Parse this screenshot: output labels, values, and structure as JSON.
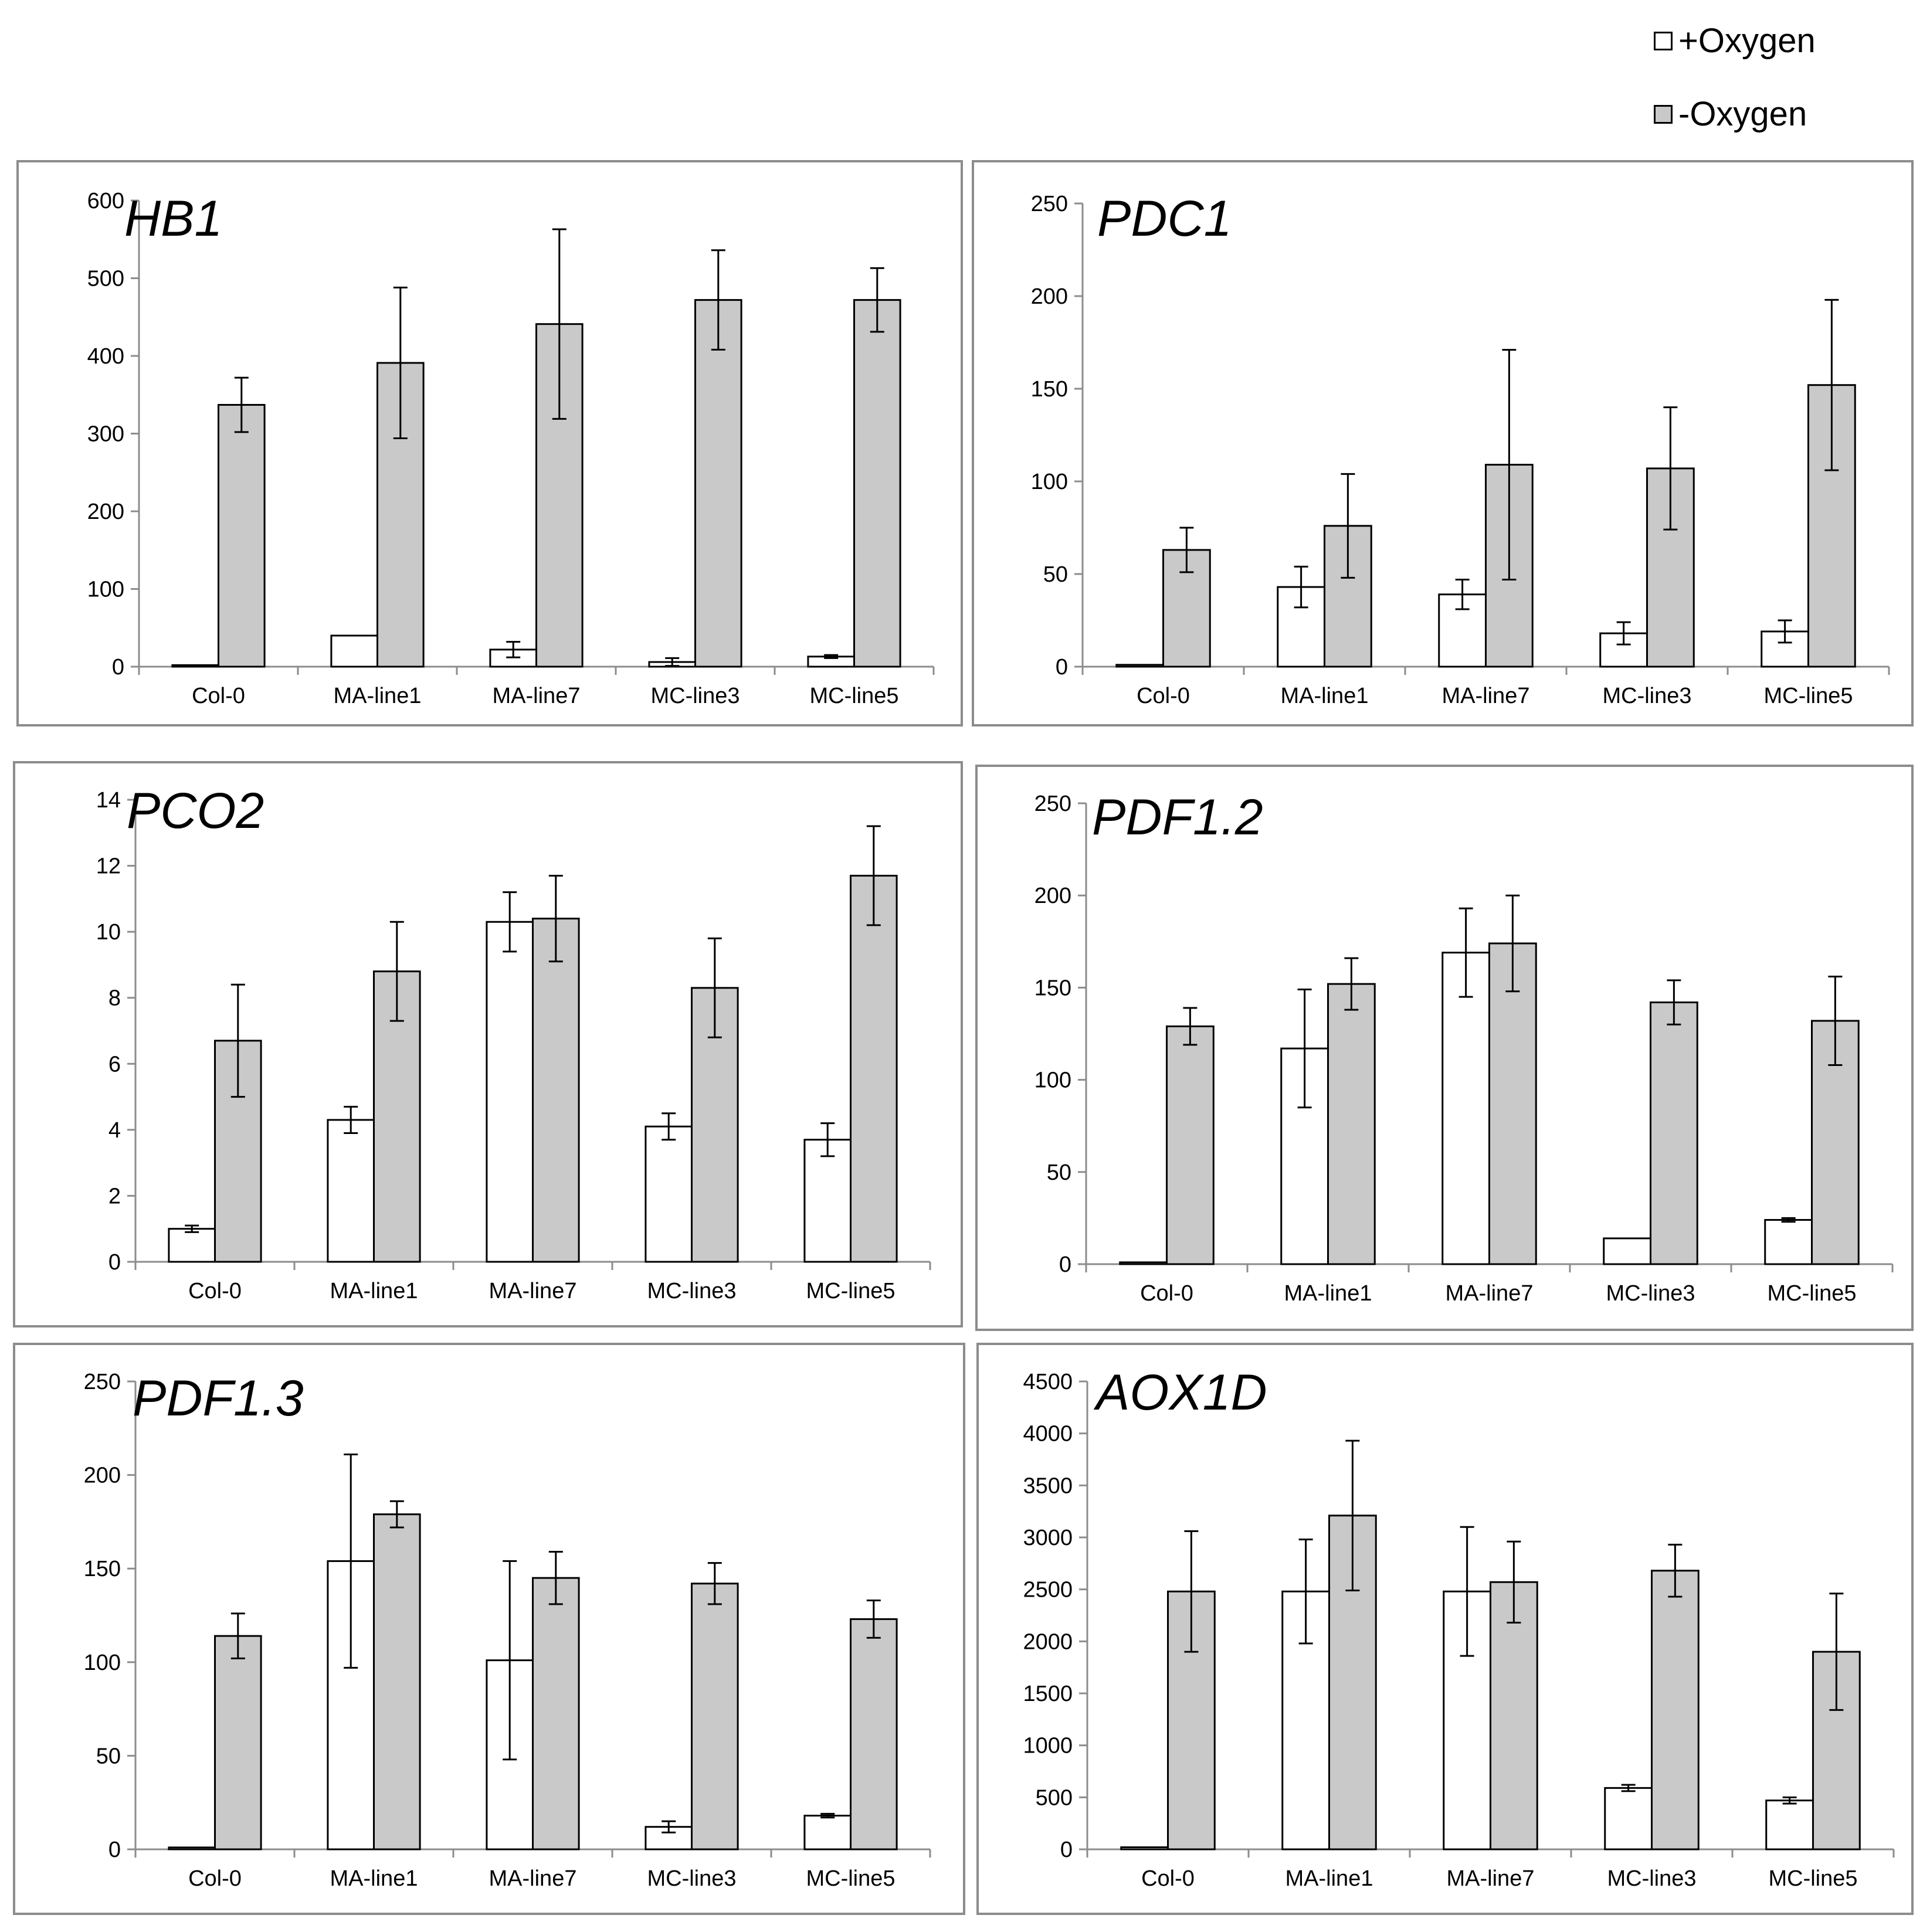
{
  "legend": {
    "items": [
      {
        "label": "+Oxygen",
        "color": "#ffffff"
      },
      {
        "label": "-Oxygen",
        "color": "#c9c9c9"
      }
    ]
  },
  "colors": {
    "plus_oxygen": "#ffffff",
    "minus_oxygen": "#c9c9c9",
    "axis": "#8c8c8c",
    "panel_border": "#8c8c8c"
  },
  "chart_data": [
    {
      "type": "bar",
      "title": "HB1",
      "categories": [
        "Col-0",
        "MA-line1",
        "MA-line7",
        "MC-line3",
        "MC-line5"
      ],
      "ylim": [
        0,
        600
      ],
      "yticks": [
        0,
        100,
        200,
        300,
        400,
        500,
        600
      ],
      "series": [
        {
          "name": "+Oxygen",
          "values": [
            2,
            40,
            22,
            6,
            13
          ],
          "errors": [
            0,
            0,
            10,
            5,
            2
          ]
        },
        {
          "name": "-Oxygen",
          "values": [
            337,
            391,
            441,
            472,
            472
          ],
          "errors": [
            35,
            97,
            122,
            64,
            41
          ]
        }
      ]
    },
    {
      "type": "bar",
      "title": "PDC1",
      "categories": [
        "Col-0",
        "MA-line1",
        "MA-line7",
        "MC-line3",
        "MC-line5"
      ],
      "ylim": [
        0,
        250
      ],
      "yticks": [
        0,
        50,
        100,
        150,
        200,
        250
      ],
      "series": [
        {
          "name": "+Oxygen",
          "values": [
            1,
            43,
            39,
            18,
            19
          ],
          "errors": [
            0,
            11,
            8,
            6,
            6
          ]
        },
        {
          "name": "-Oxygen",
          "values": [
            63,
            76,
            109,
            107,
            152
          ],
          "errors": [
            12,
            28,
            62,
            33,
            46
          ]
        }
      ]
    },
    {
      "type": "bar",
      "title": "PCO2",
      "categories": [
        "Col-0",
        "MA-line1",
        "MA-line7",
        "MC-line3",
        "MC-line5"
      ],
      "ylim": [
        0,
        14
      ],
      "yticks": [
        0,
        2,
        4,
        6,
        8,
        10,
        12,
        14
      ],
      "series": [
        {
          "name": "+Oxygen",
          "values": [
            1.0,
            4.3,
            10.3,
            4.1,
            3.7
          ],
          "errors": [
            0.1,
            0.4,
            0.9,
            0.4,
            0.5
          ]
        },
        {
          "name": "-Oxygen",
          "values": [
            6.7,
            8.8,
            10.4,
            8.3,
            11.7
          ],
          "errors": [
            1.7,
            1.5,
            1.3,
            1.5,
            1.5
          ]
        }
      ]
    },
    {
      "type": "bar",
      "title": "PDF1.2",
      "categories": [
        "Col-0",
        "MA-line1",
        "MA-line7",
        "MC-line3",
        "MC-line5"
      ],
      "ylim": [
        0,
        250
      ],
      "yticks": [
        0,
        50,
        100,
        150,
        200,
        250
      ],
      "series": [
        {
          "name": "+Oxygen",
          "values": [
            1,
            117,
            169,
            14,
            24
          ],
          "errors": [
            0,
            32,
            24,
            0,
            1
          ]
        },
        {
          "name": "-Oxygen",
          "values": [
            129,
            152,
            174,
            142,
            132
          ],
          "errors": [
            10,
            14,
            26,
            12,
            24
          ]
        }
      ]
    },
    {
      "type": "bar",
      "title": "PDF1.3",
      "categories": [
        "Col-0",
        "MA-line1",
        "MA-line7",
        "MC-line3",
        "MC-line5"
      ],
      "ylim": [
        0,
        250
      ],
      "yticks": [
        0,
        50,
        100,
        150,
        200,
        250
      ],
      "series": [
        {
          "name": "+Oxygen",
          "values": [
            1,
            154,
            101,
            12,
            18
          ],
          "errors": [
            0,
            57,
            53,
            3,
            1
          ]
        },
        {
          "name": "-Oxygen",
          "values": [
            114,
            179,
            145,
            142,
            123
          ],
          "errors": [
            12,
            7,
            14,
            11,
            10
          ]
        }
      ]
    },
    {
      "type": "bar",
      "title": "AOX1D",
      "categories": [
        "Col-0",
        "MA-line1",
        "MA-line7",
        "MC-line3",
        "MC-line5"
      ],
      "ylim": [
        0,
        4500
      ],
      "yticks": [
        0,
        500,
        1000,
        1500,
        2000,
        2500,
        3000,
        3500,
        4000,
        4500
      ],
      "series": [
        {
          "name": "+Oxygen",
          "values": [
            20,
            2480,
            2480,
            590,
            470
          ],
          "errors": [
            0,
            500,
            620,
            30,
            30
          ]
        },
        {
          "name": "-Oxygen",
          "values": [
            2480,
            3210,
            2570,
            2680,
            1900
          ],
          "errors": [
            580,
            720,
            390,
            250,
            560
          ]
        }
      ]
    }
  ]
}
